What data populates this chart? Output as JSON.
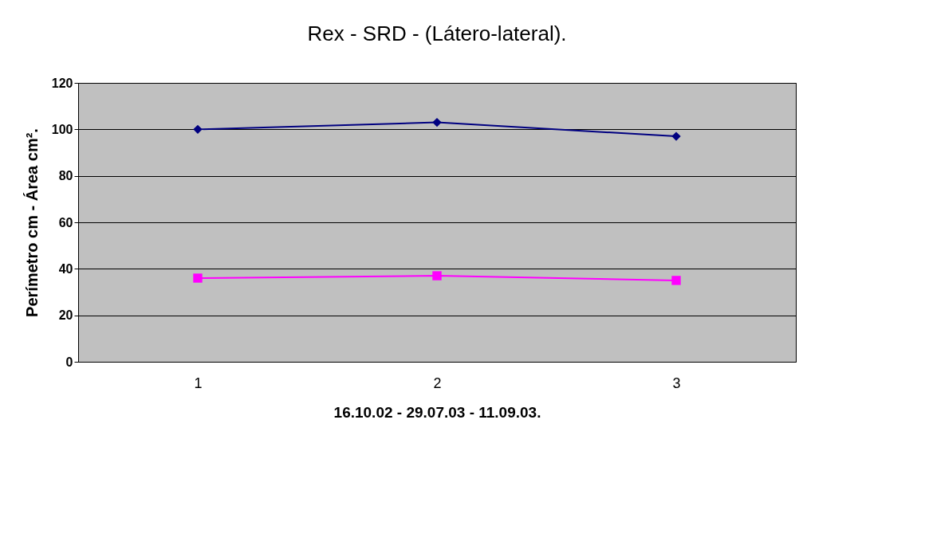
{
  "chart_data": {
    "type": "line",
    "title": "Rex - SRD - (Látero-lateral).",
    "xlabel": "16.10.02 - 29.07.03 - 11.09.03.",
    "ylabel": "Perímetro cm - Área cm².",
    "categories": [
      "1",
      "2",
      "3"
    ],
    "series": [
      {
        "color": "#000080",
        "values": [
          100,
          103,
          97
        ],
        "marker": "diamond"
      },
      {
        "color": "#ff00ff",
        "values": [
          36,
          37,
          35
        ],
        "marker": "square"
      }
    ],
    "ylim": [
      0,
      120
    ],
    "yticks": [
      0,
      20,
      40,
      60,
      80,
      100,
      120
    ],
    "grid": "y",
    "legend": false,
    "line_style": "solid"
  }
}
